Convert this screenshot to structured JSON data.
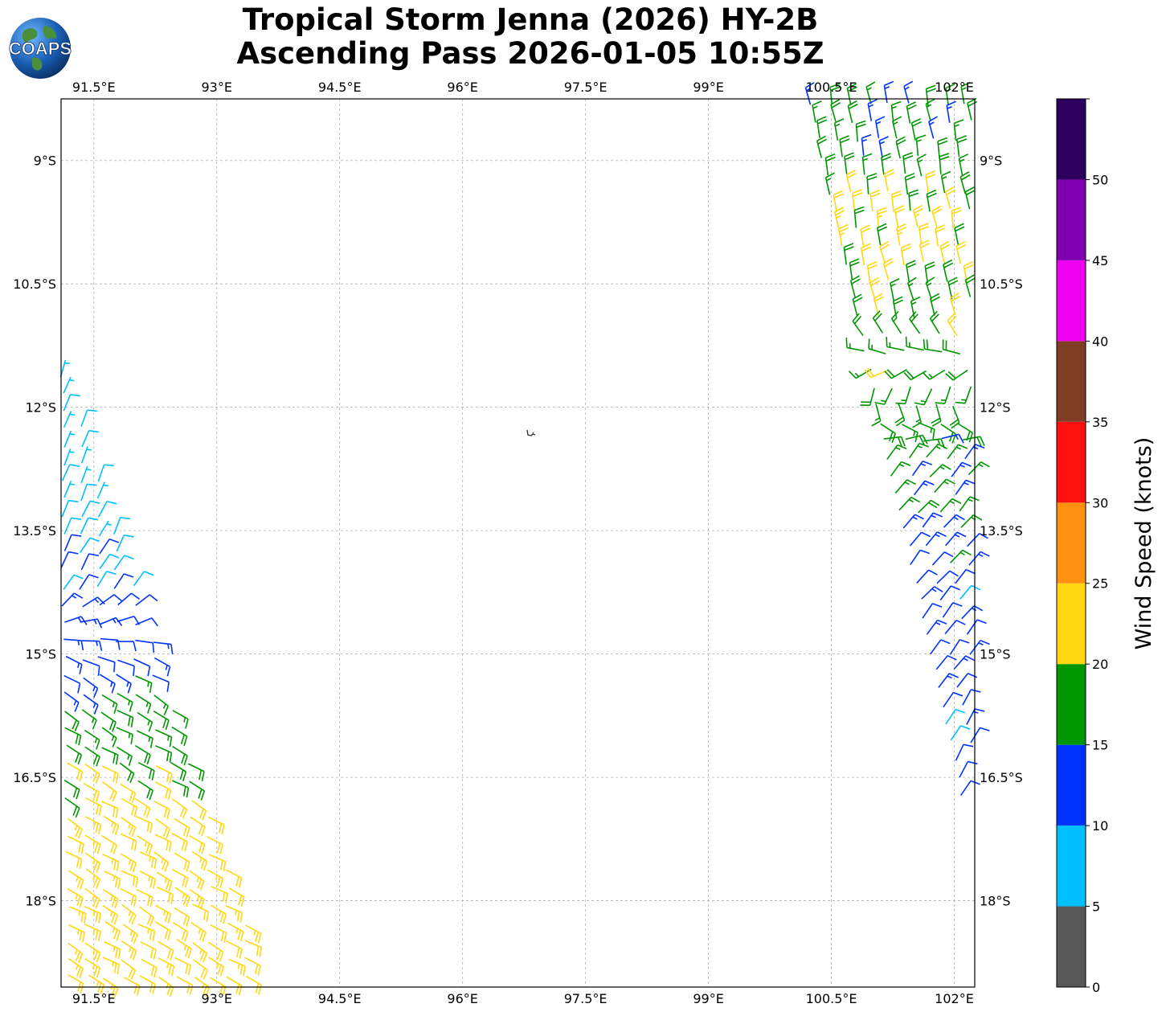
{
  "title": {
    "line1": "Tropical Storm Jenna (2026) HY-2B",
    "line2": "Ascending Pass 2026-01-05 10:55Z"
  },
  "logo": {
    "text": "COAPS"
  },
  "map": {
    "lon_range": [
      91.1,
      102.25
    ],
    "lat_range": [
      -19.05,
      -8.25
    ],
    "lon_ticks": [
      "91.5°E",
      "93°E",
      "94.5°E",
      "96°E",
      "97.5°E",
      "99°E",
      "100.5°E",
      "102°E"
    ],
    "lon_tick_values": [
      91.5,
      93,
      94.5,
      96,
      97.5,
      99,
      100.5,
      102
    ],
    "lat_ticks": [
      "9°S",
      "10.5°S",
      "12°S",
      "13.5°S",
      "15°S",
      "16.5°S",
      "18°S"
    ],
    "lat_tick_values": [
      -9,
      -10.5,
      -12,
      -13.5,
      -15,
      -16.5,
      -18
    ],
    "gridlines": true
  },
  "colorbar": {
    "label": "Wind Speed (knots)",
    "tick_labels": [
      "0",
      "5",
      "10",
      "15",
      "20",
      "25",
      "30",
      "35",
      "40",
      "45",
      "50"
    ],
    "bins": [
      0,
      5,
      10,
      15,
      20,
      25,
      30,
      35,
      40,
      45,
      50,
      55
    ],
    "colors": [
      "#575757",
      "#00bfff",
      "#0033ff",
      "#009600",
      "#ffd712",
      "#ff9010",
      "#ff1010",
      "#7f3d26",
      "#f000f0",
      "#8000b0",
      "#2e005e"
    ]
  },
  "chart_data": {
    "type": "wind_barbs",
    "units": "knots",
    "swaths": [
      {
        "region": "western swath",
        "segments": [
          {
            "lat": -12.1,
            "lon": 91.2,
            "speed": 8,
            "dir": 20
          },
          {
            "lat": -13.2,
            "lon": 91.6,
            "speed": 8,
            "dir": 25
          },
          {
            "lat": -14.2,
            "lon": 92.0,
            "speed": 11,
            "dir": 30
          },
          {
            "lat": -15.1,
            "lon": 92.2,
            "speed": 13,
            "dir": 120
          },
          {
            "lat": -15.8,
            "lon": 92.3,
            "speed": 17,
            "dir": 120
          },
          {
            "lat": -17.0,
            "lon": 92.4,
            "speed": 22,
            "dir": 120
          },
          {
            "lat": -18.6,
            "lon": 92.6,
            "speed": 23,
            "dir": 120
          }
        ]
      },
      {
        "region": "eastern swath",
        "segments": [
          {
            "lat": -8.8,
            "lon": 101.3,
            "speed": 16,
            "dir": 350
          },
          {
            "lat": -10.0,
            "lon": 101.1,
            "speed": 22,
            "dir": 350
          },
          {
            "lat": -11.0,
            "lon": 101.5,
            "speed": 18,
            "dir": 345
          },
          {
            "lat": -12.6,
            "lon": 101.8,
            "speed": 17,
            "dir": 40
          },
          {
            "lat": -14.5,
            "lon": 102.0,
            "speed": 12,
            "dir": 40
          },
          {
            "lat": -16.0,
            "lon": 102.1,
            "speed": 11,
            "dir": 30
          }
        ]
      }
    ]
  }
}
